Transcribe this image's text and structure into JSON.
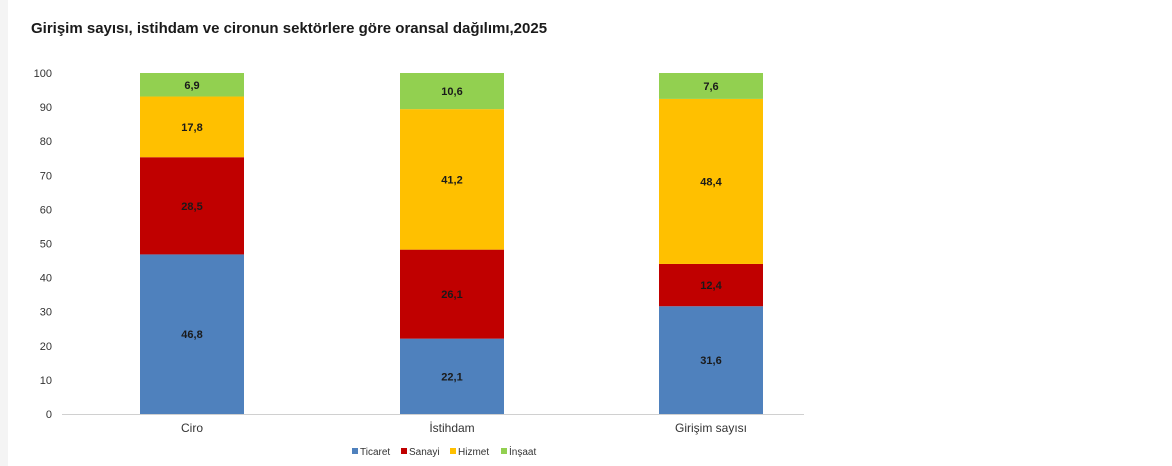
{
  "chart_data": {
    "type": "bar",
    "stacked": true,
    "title": "Girişim sayısı, istihdam ve cironun sektörlere göre oransal dağılımı,2025",
    "categories": [
      "Ciro",
      "İstihdam",
      "Girişim sayısı"
    ],
    "series": [
      {
        "name": "Ticaret",
        "color": "#4f81bd",
        "values": [
          46.8,
          22.1,
          31.6
        ]
      },
      {
        "name": "Sanayi",
        "color": "#c00000",
        "values": [
          28.5,
          26.1,
          12.4
        ]
      },
      {
        "name": "Hizmet",
        "color": "#ffc000",
        "values": [
          17.8,
          41.2,
          48.4
        ]
      },
      {
        "name": "İnşaat",
        "color": "#92d050",
        "values": [
          6.9,
          10.6,
          7.6
        ]
      }
    ],
    "ylim": [
      0,
      100
    ],
    "yticks": [
      0,
      10,
      20,
      30,
      40,
      50,
      60,
      70,
      80,
      90,
      100
    ],
    "legend_position": "bottom",
    "grid": false
  }
}
